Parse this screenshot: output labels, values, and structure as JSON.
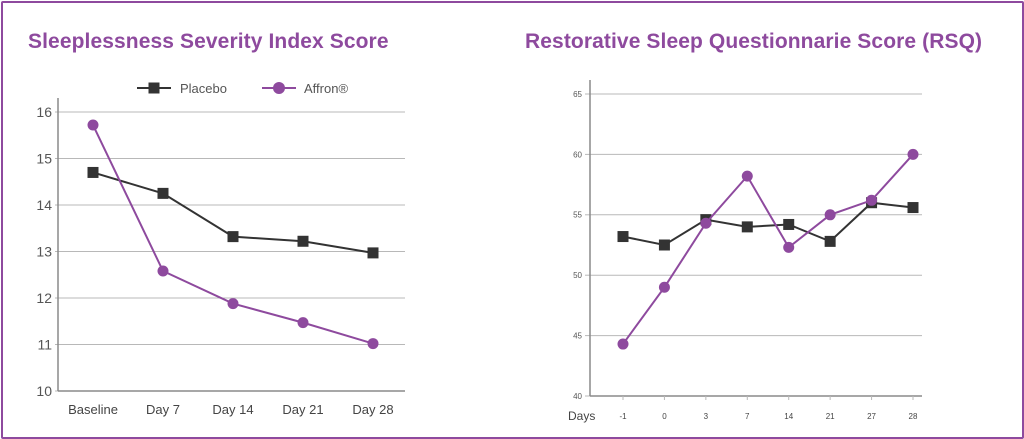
{
  "colors": {
    "frame": "#8e4a9e",
    "placebo": "#333333",
    "affron": "#8e4a9e",
    "grid": "#b8b8b8"
  },
  "chart_data": [
    {
      "type": "line",
      "title": "Sleeplessness Severity Index Score",
      "categories": [
        "Baseline",
        "Day 7",
        "Day 14",
        "Day 21",
        "Day 28"
      ],
      "ylim": [
        10,
        16
      ],
      "yticks": [
        10,
        11,
        12,
        13,
        14,
        15,
        16
      ],
      "grid": true,
      "legend": "top-center",
      "series": [
        {
          "name": "Placebo",
          "marker": "square",
          "color": "#333333",
          "values": [
            14.7,
            14.25,
            13.32,
            13.22,
            12.97
          ]
        },
        {
          "name": "Affron®",
          "marker": "circle",
          "color": "#8e4a9e",
          "values": [
            15.72,
            12.58,
            11.88,
            11.47,
            11.02
          ]
        }
      ]
    },
    {
      "type": "line",
      "title": "Restorative Sleep Questionnarie Score (RSQ)",
      "xlabel": "Days",
      "categories": [
        "-1",
        "0",
        "3",
        "7",
        "14",
        "21",
        "27",
        "28"
      ],
      "ylim": [
        40,
        65
      ],
      "yticks": [
        40,
        45,
        50,
        55,
        60,
        65
      ],
      "grid": true,
      "series": [
        {
          "name": "",
          "marker": "square",
          "color": "#333333",
          "values": [
            53.2,
            52.5,
            54.6,
            54.0,
            54.2,
            52.8,
            56.0,
            55.6
          ]
        },
        {
          "name": "",
          "marker": "circle",
          "color": "#8e4a9e",
          "values": [
            44.3,
            49.0,
            54.3,
            58.2,
            52.3,
            55.0,
            56.2,
            60.0
          ]
        }
      ]
    }
  ]
}
